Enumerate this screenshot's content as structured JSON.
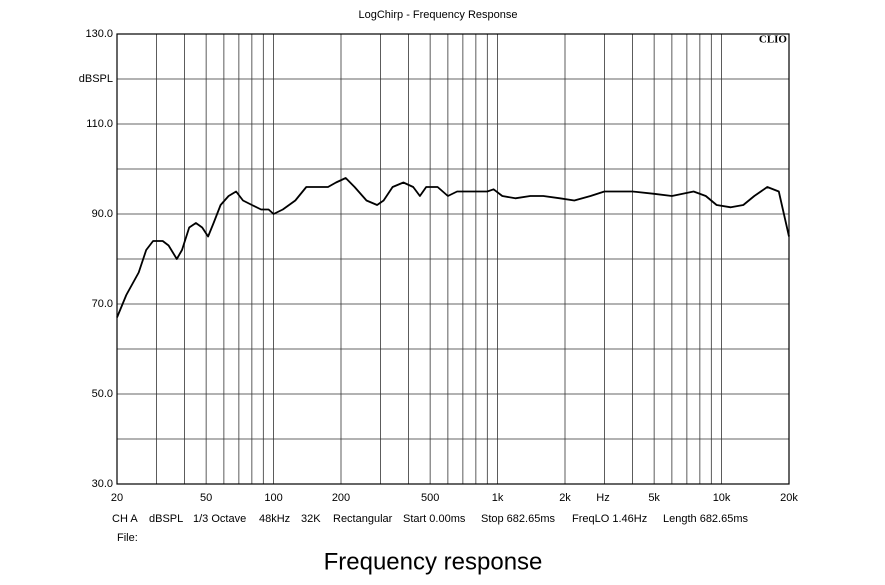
{
  "chart_data": {
    "type": "line",
    "title": "LogChirp - Frequency Response",
    "brand": "CLIO",
    "ylabel": "dBSPL",
    "xunit": "Hz",
    "caption": "Frequency response",
    "file_label": "File:",
    "info": [
      "CH A",
      "dBSPL",
      "1/3 Octave",
      "48kHz",
      "32K",
      "Rectangular",
      "Start 0.00ms",
      "Stop 682.65ms",
      "FreqLO 1.46Hz",
      "Length 682.65ms"
    ],
    "xscale": "log",
    "grid": true,
    "xlim": [
      20,
      20000
    ],
    "xticks": [
      20,
      50,
      100,
      200,
      500,
      {
        "value": 1000,
        "label": "1k"
      },
      {
        "value": 2000,
        "label": "2k"
      },
      {
        "value": 5000,
        "label": "5k"
      },
      {
        "value": 10000,
        "label": "10k"
      },
      {
        "value": 20000,
        "label": "20k"
      }
    ],
    "xminor": [
      30,
      40,
      60,
      70,
      80,
      90,
      300,
      400,
      600,
      700,
      800,
      900,
      3000,
      4000,
      6000,
      7000,
      8000,
      9000
    ],
    "ylim": [
      30,
      130
    ],
    "yticks": [
      {
        "value": 130,
        "label": "130.0"
      },
      {
        "value": 110,
        "label": "110.0"
      },
      {
        "value": 90,
        "label": "90.0"
      },
      {
        "value": 70,
        "label": "70.0"
      },
      {
        "value": 50,
        "label": "50.0"
      },
      {
        "value": 30,
        "label": "30.0"
      }
    ],
    "yminor": [
      120,
      100,
      80,
      60,
      40
    ],
    "x": [
      20,
      22,
      25,
      27,
      29,
      32,
      34,
      37,
      39,
      42,
      45,
      48,
      51,
      54,
      58,
      63,
      68,
      73,
      80,
      88,
      95,
      100,
      110,
      125,
      140,
      160,
      175,
      190,
      210,
      230,
      260,
      290,
      310,
      340,
      380,
      420,
      450,
      480,
      540,
      600,
      660,
      800,
      900,
      960,
      1050,
      1200,
      1400,
      1600,
      1900,
      2200,
      2600,
      3000,
      4000,
      5000,
      6000,
      7500,
      8500,
      9500,
      11000,
      12500,
      14000,
      16000,
      18000,
      20000
    ],
    "series": [
      {
        "color": "#000000",
        "values": [
          67,
          72,
          77,
          82,
          84,
          84,
          83,
          80,
          82,
          87,
          88,
          87,
          85,
          88,
          92,
          94,
          95,
          93,
          92,
          91,
          91,
          90,
          91,
          93,
          96,
          96,
          96,
          97,
          98,
          96,
          93,
          92,
          93,
          96,
          97,
          96,
          94,
          96,
          96,
          94,
          95,
          95,
          95,
          95.5,
          94,
          93.5,
          94,
          94,
          93.5,
          93,
          94,
          95,
          95,
          94.5,
          94,
          95,
          94,
          92,
          91.5,
          92,
          94,
          96,
          95,
          85
        ]
      }
    ]
  }
}
